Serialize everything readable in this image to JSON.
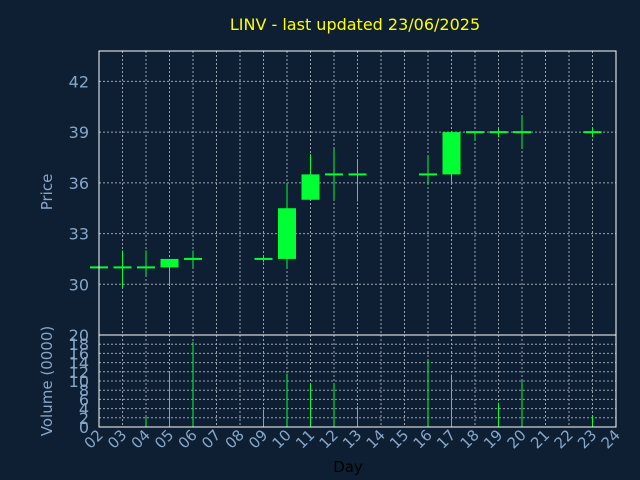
{
  "chart_data": {
    "type": "candlestick",
    "title": "LINV - last updated 23/06/2025",
    "xlabel": "Day",
    "price_panel": {
      "ylabel": "Price",
      "ylim": [
        27.0,
        43.8
      ],
      "yticks": [
        30,
        33,
        36,
        39,
        42
      ],
      "ytick_labels": [
        "30",
        "33",
        "36",
        "39",
        "42"
      ],
      "grid": true
    },
    "volume_panel": {
      "ylabel": "Volume (0000)",
      "ylim": [
        0,
        20
      ],
      "yticks": [
        0,
        2,
        4,
        6,
        8,
        10,
        12,
        14,
        16,
        18,
        20
      ],
      "ytick_labels": [
        "0",
        "2",
        "4",
        "6",
        "8",
        "10",
        "12",
        "14",
        "16",
        "18",
        "20"
      ],
      "grid": true
    },
    "x_range": [
      2,
      24
    ],
    "x_ticks": [
      2,
      3,
      4,
      5,
      6,
      7,
      8,
      9,
      10,
      11,
      12,
      13,
      14,
      15,
      16,
      17,
      18,
      19,
      20,
      21,
      22,
      23,
      24
    ],
    "x_tick_labels": [
      "02",
      "03",
      "04",
      "05",
      "06",
      "07",
      "08",
      "09",
      "10",
      "11",
      "12",
      "13",
      "14",
      "15",
      "16",
      "17",
      "18",
      "19",
      "20",
      "21",
      "22",
      "23",
      "24"
    ],
    "candles": [
      {
        "day": 2,
        "open": 31.0,
        "high": 31.0,
        "low": 31.0,
        "close": 31.0
      },
      {
        "day": 3,
        "open": 31.0,
        "high": 32.0,
        "low": 29.8,
        "close": 31.0
      },
      {
        "day": 4,
        "open": 31.0,
        "high": 32.0,
        "low": 30.5,
        "close": 31.0
      },
      {
        "day": 5,
        "open": 31.0,
        "high": 31.5,
        "low": 29.9,
        "close": 31.5
      },
      {
        "day": 6,
        "open": 31.5,
        "high": 32.0,
        "low": 31.0,
        "close": 31.5
      },
      {
        "day": 9,
        "open": 31.5,
        "high": 31.7,
        "low": 31.3,
        "close": 31.5
      },
      {
        "day": 10,
        "open": 31.5,
        "high": 36.0,
        "low": 31.0,
        "close": 34.5
      },
      {
        "day": 11,
        "open": 35.0,
        "high": 37.7,
        "low": 35.0,
        "close": 36.5
      },
      {
        "day": 12,
        "open": 36.5,
        "high": 38.0,
        "low": 35.0,
        "close": 36.5
      },
      {
        "day": 13,
        "open": 36.5,
        "high": 37.3,
        "low": 34.9,
        "close": 36.5
      },
      {
        "day": 16,
        "open": 36.5,
        "high": 37.6,
        "low": 35.9,
        "close": 36.5
      },
      {
        "day": 17,
        "open": 36.5,
        "high": 39.0,
        "low": 36.0,
        "close": 39.0
      },
      {
        "day": 18,
        "open": 39.0,
        "high": 39.0,
        "low": 38.5,
        "close": 39.0
      },
      {
        "day": 19,
        "open": 39.0,
        "high": 39.2,
        "low": 38.7,
        "close": 39.0
      },
      {
        "day": 20,
        "open": 39.0,
        "high": 40.0,
        "low": 38.0,
        "close": 39.0
      },
      {
        "day": 23,
        "open": 39.0,
        "high": 39.3,
        "low": 38.7,
        "close": 39.0
      }
    ],
    "volume": [
      {
        "day": 4,
        "value": 2.2
      },
      {
        "day": 5,
        "value": 11.7
      },
      {
        "day": 6,
        "value": 18.5
      },
      {
        "day": 9,
        "value": 3.8
      },
      {
        "day": 10,
        "value": 11.6
      },
      {
        "day": 11,
        "value": 9.6
      },
      {
        "day": 12,
        "value": 9.6
      },
      {
        "day": 13,
        "value": 4.5
      },
      {
        "day": 16,
        "value": 14.7
      },
      {
        "day": 17,
        "value": 11.4
      },
      {
        "day": 19,
        "value": 5.3
      },
      {
        "day": 20,
        "value": 10.0
      },
      {
        "day": 23,
        "value": 2.4
      }
    ],
    "colors": {
      "background": "#0e1f33",
      "frame": "#ffffff",
      "grid": "#9aa3ad",
      "candle": "#00ff33",
      "volume": "#00ff33",
      "title": "#ffff00",
      "axis_text": "#87a6c8",
      "xlabel": "#000000"
    }
  }
}
